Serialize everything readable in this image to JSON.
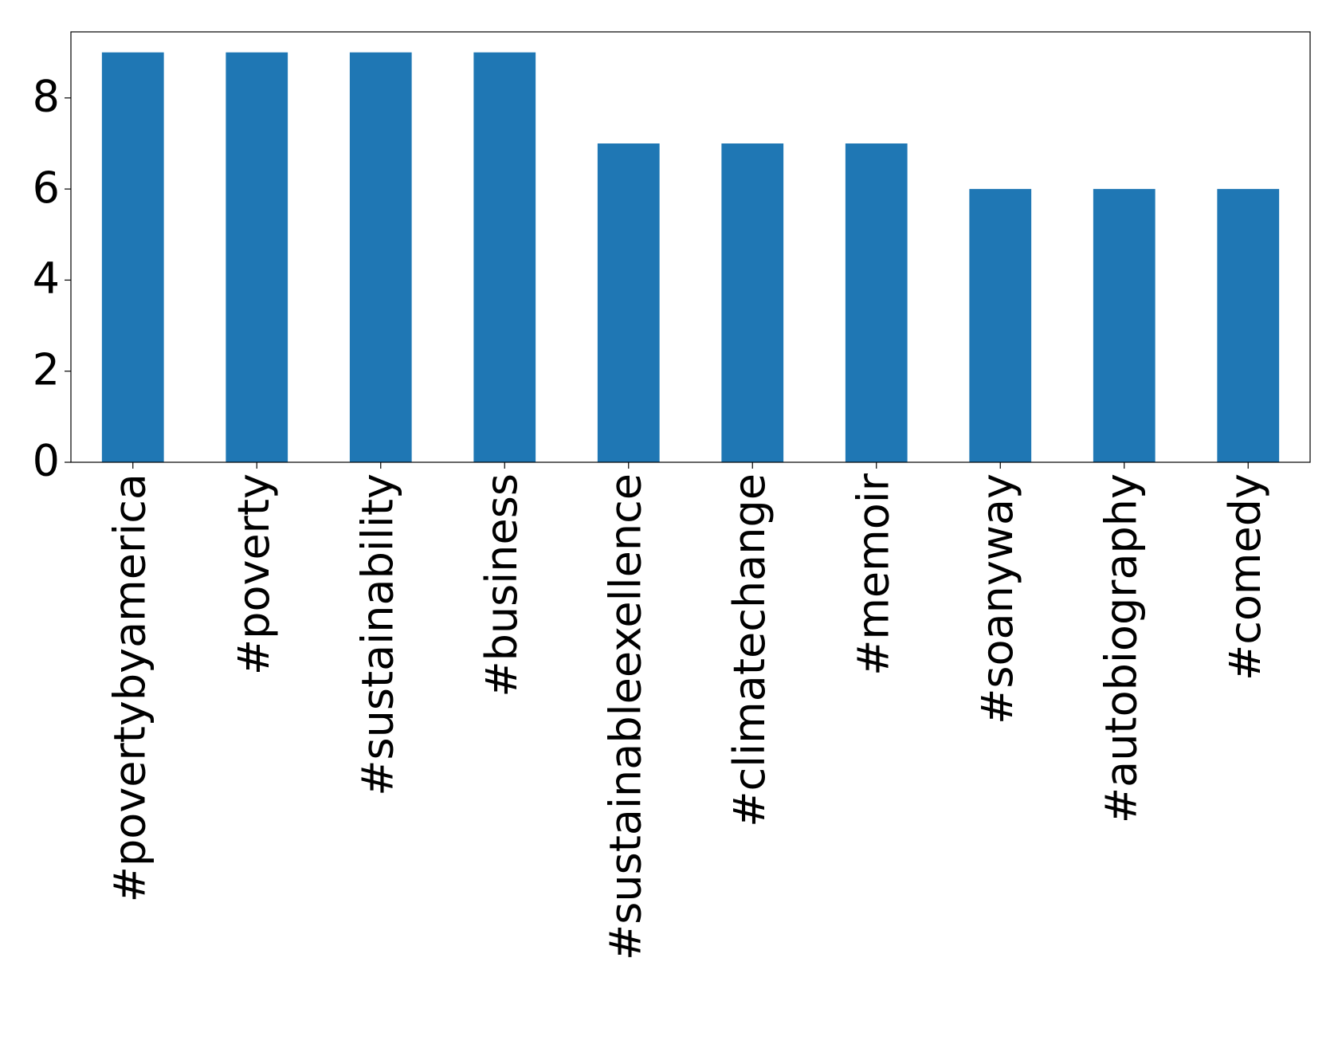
{
  "chart_data": {
    "type": "bar",
    "categories": [
      "#povertybyamerica",
      "#poverty",
      "#sustainability",
      "#business",
      "#sustainableexellence",
      "#climatechange",
      "#memoir",
      "#soanyway",
      "#autobiography",
      "#comedy"
    ],
    "values": [
      9,
      9,
      9,
      9,
      7,
      7,
      7,
      6,
      6,
      6
    ],
    "color": "#1f77b4",
    "ylim": [
      0,
      9.45
    ],
    "yticks": [
      0,
      2,
      4,
      6,
      8
    ],
    "grid": false
  }
}
